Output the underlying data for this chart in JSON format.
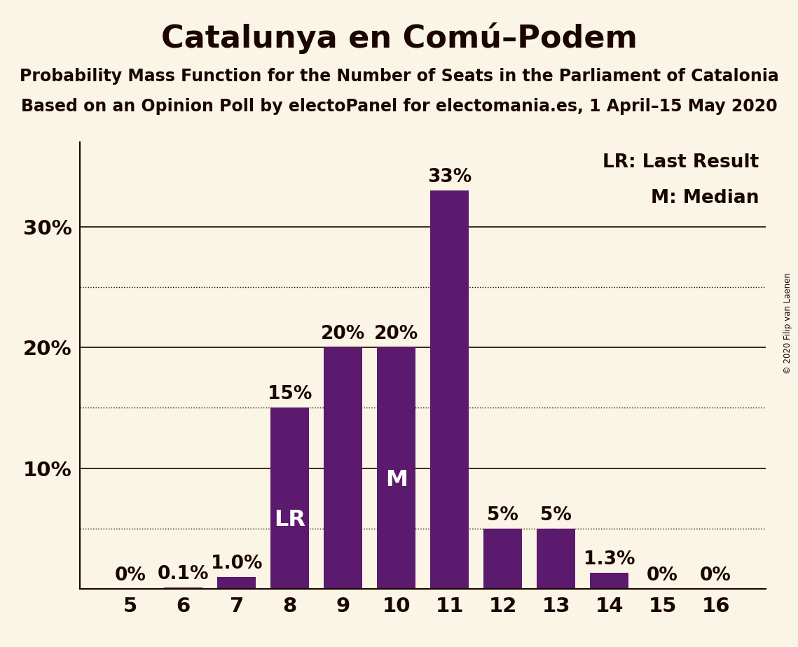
{
  "title": "Catalunya en Comú–Podem",
  "subtitle1": "Probability Mass Function for the Number of Seats in the Parliament of Catalonia",
  "subtitle2": "Based on an Opinion Poll by electoPanel for electomania.es, 1 April–15 May 2020",
  "copyright": "© 2020 Filip van Laenen",
  "categories": [
    5,
    6,
    7,
    8,
    9,
    10,
    11,
    12,
    13,
    14,
    15,
    16
  ],
  "values": [
    0.0,
    0.1,
    1.0,
    15.0,
    20.0,
    20.0,
    33.0,
    5.0,
    5.0,
    1.3,
    0.0,
    0.0
  ],
  "bar_color": "#5c1a6e",
  "background_color": "#faf5e4",
  "text_color": "#1a0500",
  "label_format": [
    "0%",
    "0.1%",
    "1.0%",
    "15%",
    "20%",
    "20%",
    "33%",
    "5%",
    "5%",
    "1.3%",
    "0%",
    "0%"
  ],
  "lr_bar_index": 3,
  "m_bar_index": 5,
  "ylim": [
    0,
    37
  ],
  "yticks_solid": [
    10,
    20,
    30
  ],
  "yticks_dotted": [
    5,
    15,
    25
  ],
  "ytick_labels": [
    "10%",
    "20%",
    "30%"
  ],
  "legend_lr": "LR: Last Result",
  "legend_m": "M: Median",
  "title_fontsize": 32,
  "subtitle_fontsize": 17,
  "bar_label_fontsize": 19,
  "axis_label_fontsize": 21,
  "legend_fontsize": 19,
  "inside_bar_fontsize": 23
}
